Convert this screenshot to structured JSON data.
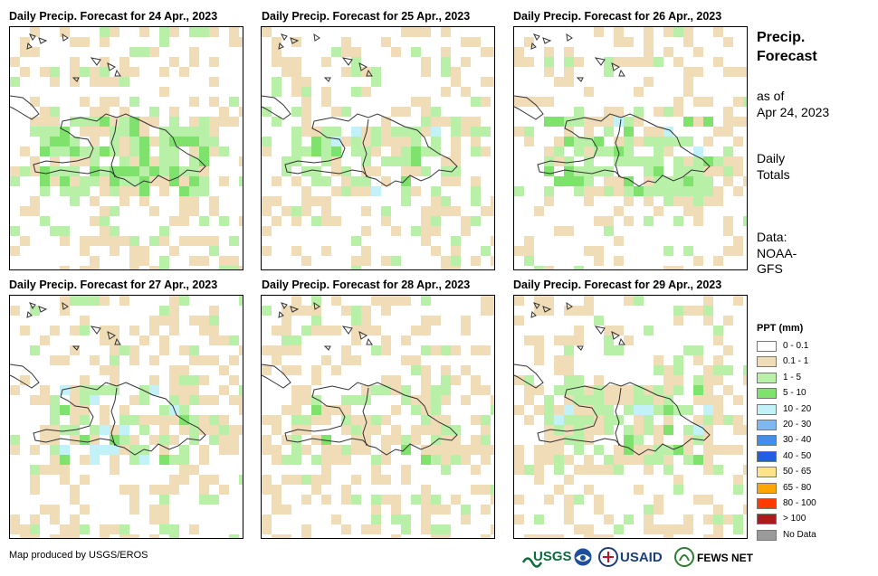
{
  "panels": [
    {
      "title": "Daily Precip. Forecast for 24 Apr., 2023"
    },
    {
      "title": "Daily Precip. Forecast for 25 Apr., 2023"
    },
    {
      "title": "Daily Precip. Forecast for 26 Apr., 2023"
    },
    {
      "title": "Daily Precip. Forecast for 27 Apr., 2023"
    },
    {
      "title": "Daily Precip. Forecast for 28 Apr., 2023"
    },
    {
      "title": "Daily Precip. Forecast for 29 Apr., 2023"
    }
  ],
  "sidebar": {
    "title_line1": "Precip.",
    "title_line2": "Forecast",
    "asof_line1": "as of",
    "asof_line2": "Apr 24, 2023",
    "totals_line1": "Daily",
    "totals_line2": "Totals",
    "data_line1": "Data:",
    "data_line2": "NOAA-",
    "data_line3": "GFS"
  },
  "legend": {
    "title": "PPT (mm)",
    "items": [
      {
        "label": "0 - 0.1",
        "color": "#ffffff"
      },
      {
        "label": "0.1 - 1",
        "color": "#f0dcb6"
      },
      {
        "label": "1 - 5",
        "color": "#b9f0a8"
      },
      {
        "label": "5 - 10",
        "color": "#7ee26d"
      },
      {
        "label": "10 - 20",
        "color": "#c2f1f7"
      },
      {
        "label": "20 - 30",
        "color": "#7fb7f3"
      },
      {
        "label": "30 - 40",
        "color": "#3f8ef0"
      },
      {
        "label": "40 - 50",
        "color": "#1f5fe0"
      },
      {
        "label": "50 - 65",
        "color": "#ffe38a"
      },
      {
        "label": "65 - 80",
        "color": "#ffa500"
      },
      {
        "label": "80 - 100",
        "color": "#ff3b00"
      },
      {
        "label": "> 100",
        "color": "#a81c1c"
      },
      {
        "label": "No Data",
        "color": "#9a9a9a"
      }
    ]
  },
  "footer": {
    "credit": "Map produced by USGS/EROS",
    "logo_usgs": "USGS",
    "logo_usaid": "USAID",
    "logo_fewsnet": "FEWS NET"
  }
}
